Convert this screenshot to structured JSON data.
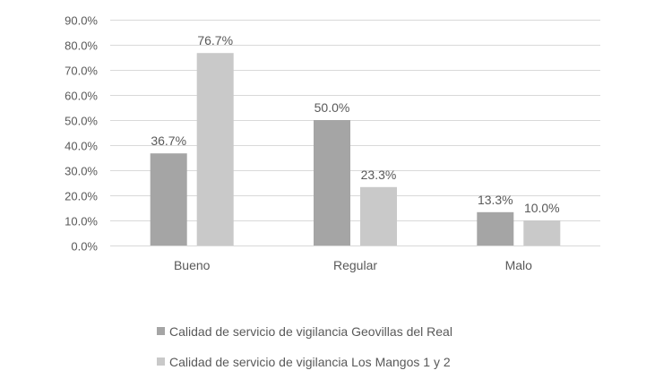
{
  "chart_data": {
    "type": "bar",
    "categories": [
      "Bueno",
      "Regular",
      "Malo"
    ],
    "series": [
      {
        "name": "Calidad de servicio de vigilancia Geovillas del Real",
        "values": [
          36.7,
          50.0,
          13.3
        ],
        "labels": [
          "36.7%",
          "50.0%",
          "13.3%"
        ],
        "color": "#a5a5a5"
      },
      {
        "name": "Calidad de servicio de vigilancia Los Mangos 1 y 2",
        "values": [
          76.7,
          23.3,
          10.0
        ],
        "labels": [
          "76.7%",
          "23.3%",
          "10.0%"
        ],
        "color": "#c9c9c9"
      }
    ],
    "title": "",
    "xlabel": "",
    "ylabel": "",
    "ylim": [
      0,
      90
    ],
    "yticks": [
      0,
      10,
      20,
      30,
      40,
      50,
      60,
      70,
      80,
      90
    ],
    "ytick_labels": [
      "0.0%",
      "10.0%",
      "20.0%",
      "30.0%",
      "40.0%",
      "50.0%",
      "60.0%",
      "70.0%",
      "80.0%",
      "90.0%"
    ],
    "grid": true,
    "legend_position": "bottom",
    "grid_color": "#d9d9d9",
    "text_color": "#595959"
  }
}
